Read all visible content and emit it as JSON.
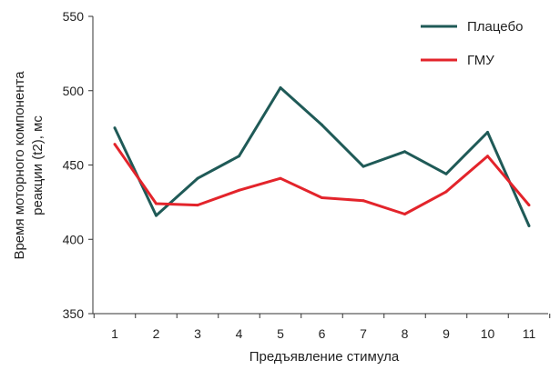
{
  "chart_data": {
    "type": "line",
    "title": "",
    "xlabel": "Предъявление стимула",
    "ylabel_lines": [
      "Время моторного компонента",
      "реакции (t2), мс"
    ],
    "categories": [
      "1",
      "2",
      "3",
      "4",
      "5",
      "6",
      "7",
      "8",
      "9",
      "10",
      "11"
    ],
    "ylim": [
      350,
      550
    ],
    "yticks": [
      "350",
      "400",
      "450",
      "500",
      "550"
    ],
    "grid": false,
    "legend_position": "top-right",
    "series": [
      {
        "name": "Плацебо",
        "color": "#1f5a57",
        "values": [
          475,
          416,
          441,
          456,
          502,
          477,
          449,
          459,
          444,
          472,
          409
        ]
      },
      {
        "name": "ГМУ",
        "color": "#e3242b",
        "values": [
          464,
          424,
          423,
          433,
          441,
          428,
          426,
          417,
          432,
          456,
          423
        ]
      }
    ]
  }
}
